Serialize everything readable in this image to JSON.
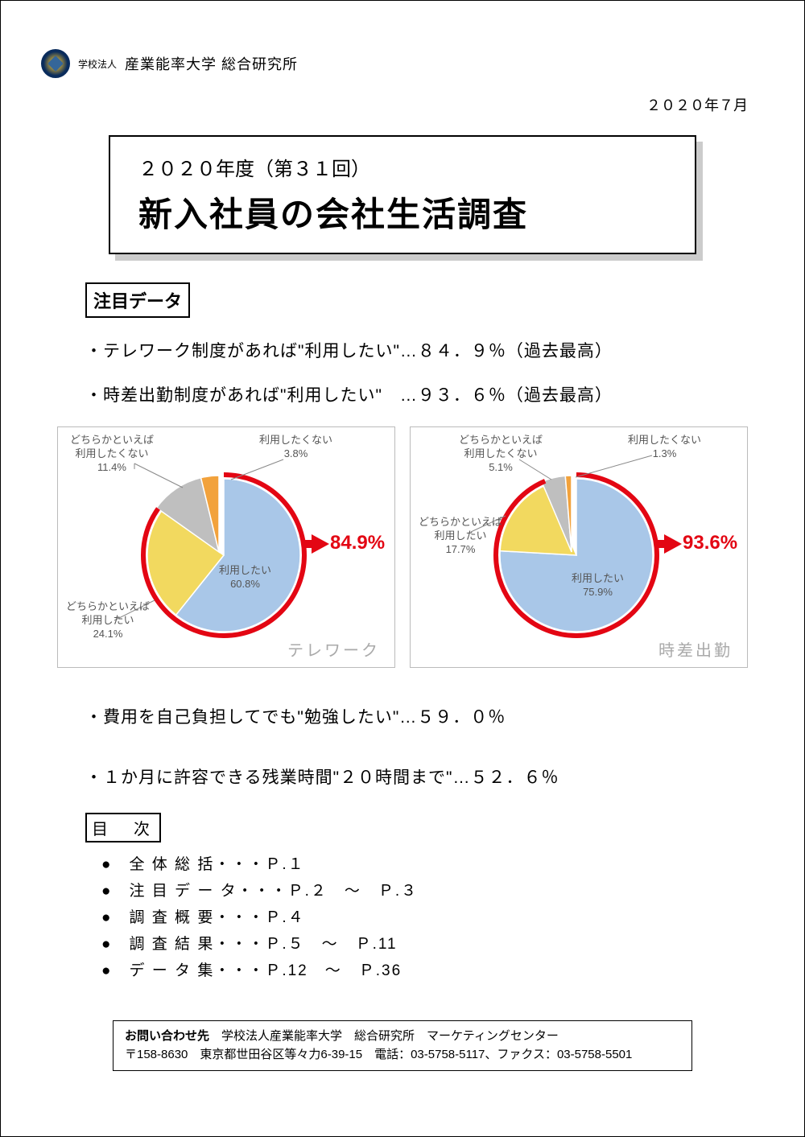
{
  "header": {
    "org_prefix": "学校法人",
    "org_name": "産業能率大学 総合研究所",
    "date": "２０２０年７月"
  },
  "title_box": {
    "small": "２０２０年度（第３１回）",
    "big": "新入社員の会社生活調査"
  },
  "attention": {
    "label": "注目データ",
    "bullet1": "・テレワーク制度があれば\"利用したい\"…８４．９％（過去最高）",
    "bullet2": "・時差出勤制度があれば\"利用したい\"　…９３．６％（過去最高）",
    "bullet3": "・費用を自己負担してでも\"勉強したい\"…５９．０％",
    "bullet4": "・１か月に許容できる残業時間\"２０時間まで\"…５２．６％"
  },
  "chart1": {
    "title": "テレワーク",
    "type": "pie",
    "callout": "84.9%",
    "segments": [
      {
        "label": "利用したい",
        "value": 60.8,
        "pct": "60.8%",
        "color": "#a9c7e8"
      },
      {
        "label": "どちらかといえば\n利用したい",
        "value": 24.1,
        "pct": "24.1%",
        "color": "#f2d95f"
      },
      {
        "label": "どちらかといえば\n利用したくない",
        "value": 11.4,
        "pct": "11.4%",
        "color": "#bfbfbf"
      },
      {
        "label": "利用したくない",
        "value": 3.8,
        "pct": "3.8%",
        "color": "#f2a23c"
      }
    ],
    "ring_color": "#e30613",
    "ring_width": 6,
    "label_color": "#555"
  },
  "chart2": {
    "title": "時差出勤",
    "type": "pie",
    "callout": "93.6%",
    "segments": [
      {
        "label": "利用したい",
        "value": 75.9,
        "pct": "75.9%",
        "color": "#a9c7e8"
      },
      {
        "label": "どちらかといえば\n利用したい",
        "value": 17.7,
        "pct": "17.7%",
        "color": "#f2d95f"
      },
      {
        "label": "どちらかといえば\n利用したくない",
        "value": 5.1,
        "pct": "5.1%",
        "color": "#bfbfbf"
      },
      {
        "label": "利用したくない",
        "value": 1.3,
        "pct": "1.3%",
        "color": "#f2a23c"
      }
    ],
    "ring_color": "#e30613",
    "ring_width": 6,
    "label_color": "#555"
  },
  "toc": {
    "title": "目　次",
    "items": [
      "●　全 体 総 括・・・Ｐ.１",
      "●　注 目 デ ー タ・・・Ｐ.２　～　Ｐ.３",
      "●　調 査 概 要・・・Ｐ.４",
      "●　調 査 結 果・・・Ｐ.５　～　Ｐ.11",
      "●　デ ー タ 集・・・Ｐ.12　～　Ｐ.36"
    ]
  },
  "contact": {
    "label": "お問い合わせ先",
    "line1": "　学校法人産業能率大学　総合研究所　マーケティングセンター",
    "line2": "〒158-8630　東京都世田谷区等々力6-39-15　電話：03-5758-5117、ファクス：03-5758-5501"
  }
}
